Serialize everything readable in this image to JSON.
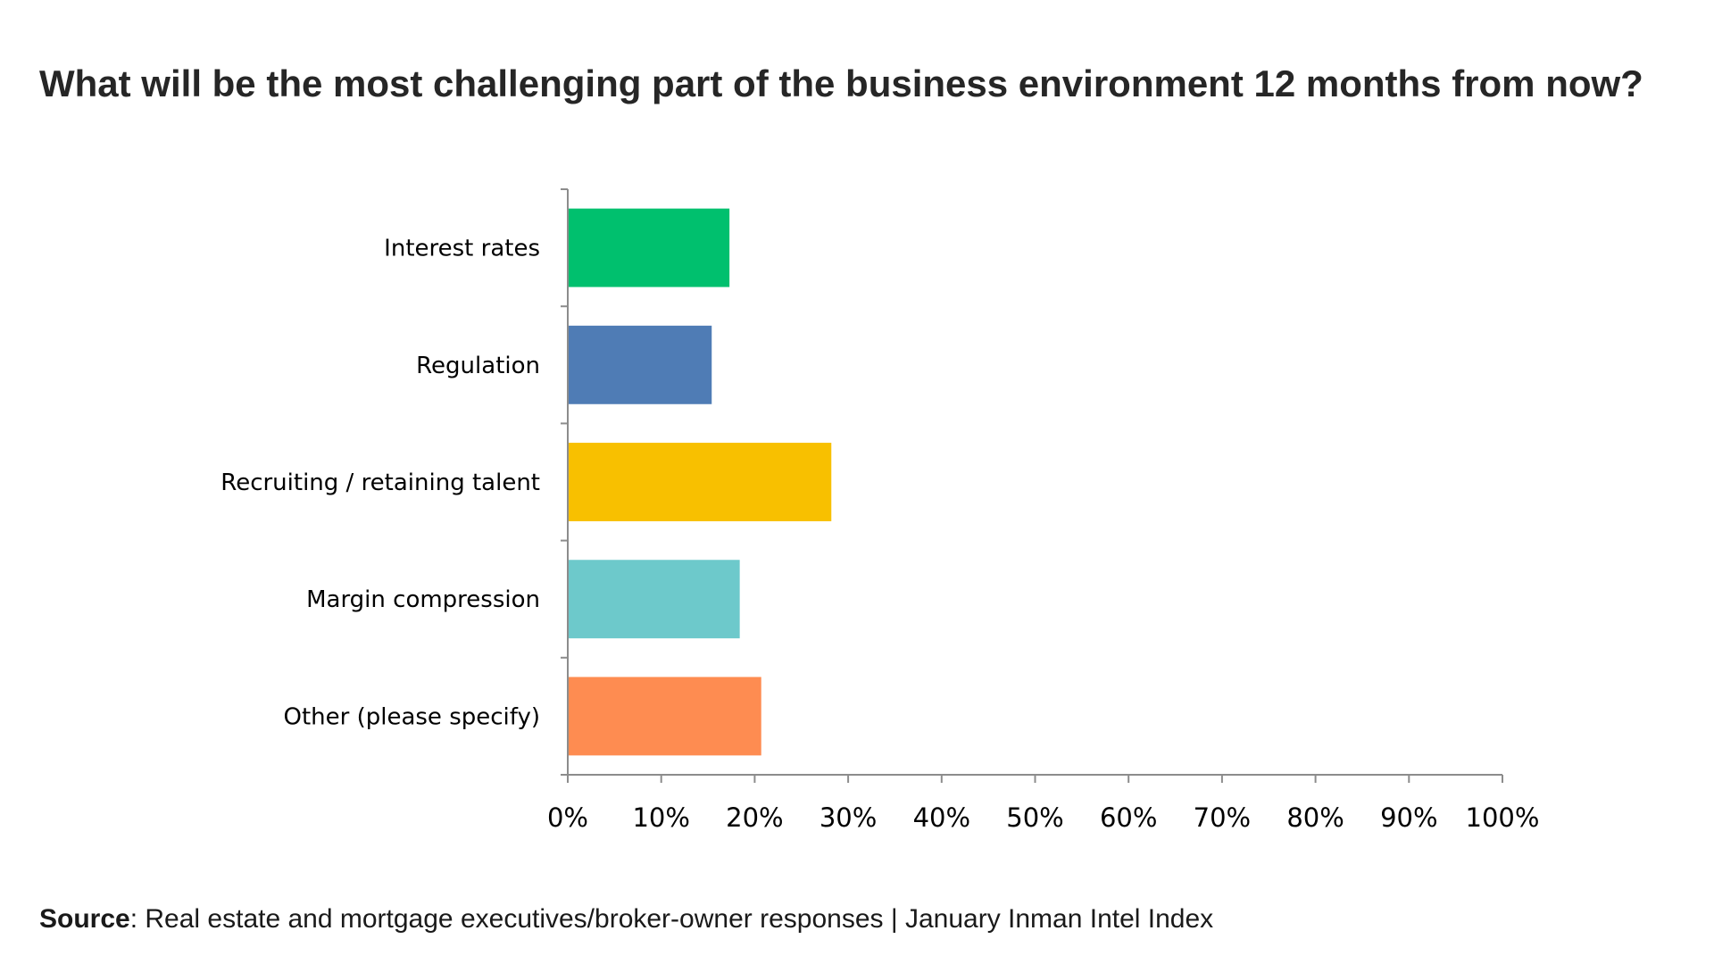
{
  "chart_data": {
    "type": "bar",
    "orientation": "horizontal",
    "title": "What will be the most challenging part of the business environment 12 months from now?",
    "categories": [
      "Interest rates",
      "Regulation",
      "Recruiting / retaining talent",
      "Margin compression",
      "Other (please specify)"
    ],
    "values": [
      17.3,
      15.4,
      28.2,
      18.4,
      20.7
    ],
    "colors": [
      "#00c06e",
      "#4f7cb5",
      "#f8c000",
      "#6dc9cb",
      "#fe8c51"
    ],
    "xlim": [
      0,
      100
    ],
    "xticks": [
      "0%",
      "10%",
      "20%",
      "30%",
      "40%",
      "50%",
      "60%",
      "70%",
      "80%",
      "90%",
      "100%"
    ],
    "xlabel": "",
    "ylabel": "",
    "grid": false,
    "legend": "none"
  },
  "source": {
    "label": "Source",
    "text": ": Real estate and mortgage executives/broker-owner responses | January Inman Intel Index"
  }
}
